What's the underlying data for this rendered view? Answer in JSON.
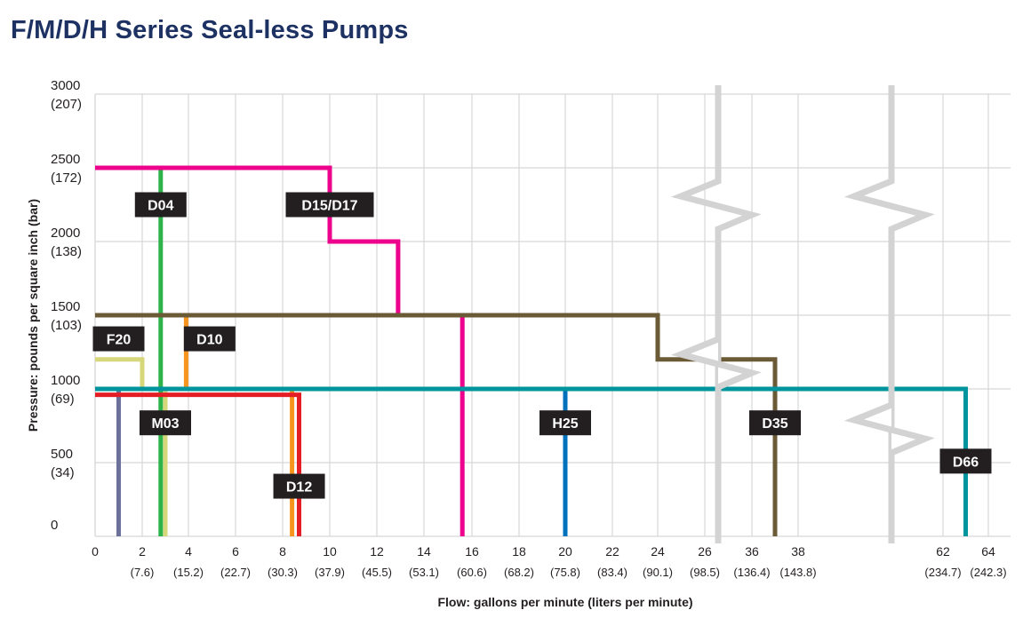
{
  "page_title": "F/M/D/H Series Seal-less Pumps",
  "chart_data": {
    "type": "line",
    "title": "F/M/D/H Series Seal-less Pumps",
    "xlabel": "Flow: gallons per minute (liters per minute)",
    "ylabel": "Pressure: pounds per square inch (bar)",
    "ylim": [
      0,
      3000
    ],
    "grid": true,
    "x_axis_break": "broken axis between 28 and 36 gpm and between 38 and 62 gpm",
    "y_ticks": [
      {
        "value": 0,
        "label": "0",
        "sub": ""
      },
      {
        "value": 500,
        "label": "500",
        "sub": "(34)"
      },
      {
        "value": 1000,
        "label": "1000",
        "sub": "(69)"
      },
      {
        "value": 1500,
        "label": "1500",
        "sub": "(103)"
      },
      {
        "value": 2000,
        "label": "2000",
        "sub": "(138)"
      },
      {
        "value": 2500,
        "label": "2500",
        "sub": "(172)"
      },
      {
        "value": 3000,
        "label": "3000",
        "sub": "(207)"
      }
    ],
    "x_ticks": [
      {
        "value": 0,
        "label": "0",
        "sub": ""
      },
      {
        "value": 2,
        "label": "2",
        "sub": "(7.6)"
      },
      {
        "value": 4,
        "label": "4",
        "sub": "(15.2)"
      },
      {
        "value": 6,
        "label": "6",
        "sub": "(22.7)"
      },
      {
        "value": 8,
        "label": "8",
        "sub": "(30.3)"
      },
      {
        "value": 10,
        "label": "10",
        "sub": "(37.9)"
      },
      {
        "value": 12,
        "label": "12",
        "sub": "(45.5)"
      },
      {
        "value": 14,
        "label": "14",
        "sub": "(53.1)"
      },
      {
        "value": 16,
        "label": "16",
        "sub": "(60.6)"
      },
      {
        "value": 18,
        "label": "18",
        "sub": "(68.2)"
      },
      {
        "value": 20,
        "label": "20",
        "sub": "(75.8)"
      },
      {
        "value": 22,
        "label": "22",
        "sub": "(83.4)"
      },
      {
        "value": 24,
        "label": "24",
        "sub": "(90.1)"
      },
      {
        "value": 26,
        "label": "26",
        "sub": "(98.5)"
      },
      {
        "value": 36,
        "label": "36",
        "sub": "(136.4)"
      },
      {
        "value": 38,
        "label": "38",
        "sub": "(143.8)"
      },
      {
        "value": 62,
        "label": "62",
        "sub": "(234.7)"
      },
      {
        "value": 64,
        "label": "64",
        "sub": "(242.3)"
      }
    ],
    "series": [
      {
        "name": "F20",
        "color": "#6c7199",
        "points": [
          [
            0,
            1000
          ],
          [
            1,
            1000
          ],
          [
            1,
            0
          ]
        ]
      },
      {
        "name": "M03",
        "color": "#d6d67a",
        "points": [
          [
            0,
            1200
          ],
          [
            2,
            1200
          ],
          [
            2,
            1000
          ],
          [
            3,
            1000
          ],
          [
            3,
            0
          ]
        ]
      },
      {
        "name": "D04",
        "color": "#2db34a",
        "points": [
          [
            2.8,
            2500
          ],
          [
            2.8,
            0
          ]
        ]
      },
      {
        "name": "D10",
        "color": "#f7941d",
        "points": [
          [
            0,
            1500
          ],
          [
            3.9,
            1500
          ],
          [
            3.9,
            1000
          ],
          [
            8.4,
            1000
          ],
          [
            8.4,
            0
          ]
        ]
      },
      {
        "name": "D12",
        "color": "#e31e24",
        "points": [
          [
            0,
            960
          ],
          [
            8.7,
            960
          ],
          [
            8.7,
            0
          ]
        ]
      },
      {
        "name": "D15/D17",
        "color": "#ec008c",
        "points": [
          [
            0,
            2500
          ],
          [
            10,
            2500
          ],
          [
            10,
            2000
          ],
          [
            12.9,
            2000
          ],
          [
            12.9,
            1500
          ],
          [
            15.6,
            1500
          ],
          [
            15.6,
            0
          ]
        ]
      },
      {
        "name": "H25",
        "color": "#0072bc",
        "points": [
          [
            20,
            1000
          ],
          [
            20,
            0
          ]
        ]
      },
      {
        "name": "D35",
        "color": "#6a5a36",
        "points": [
          [
            0,
            1500
          ],
          [
            24,
            1500
          ],
          [
            24,
            1200
          ],
          [
            37,
            1200
          ],
          [
            37,
            0
          ]
        ]
      },
      {
        "name": "D66",
        "color": "#00959e",
        "points": [
          [
            0,
            1000
          ],
          [
            63,
            1000
          ],
          [
            63,
            0
          ]
        ]
      }
    ],
    "labels": [
      {
        "text": "D04",
        "x": 2.8,
        "y": 2250
      },
      {
        "text": "D15/D17",
        "x": 10,
        "y": 2250
      },
      {
        "text": "F20",
        "x": 1,
        "y": 1340
      },
      {
        "text": "D10",
        "x": 4.9,
        "y": 1340
      },
      {
        "text": "M03",
        "x": 3,
        "y": 770
      },
      {
        "text": "H25",
        "x": 20,
        "y": 770
      },
      {
        "text": "D35",
        "x": 37,
        "y": 770
      },
      {
        "text": "D12",
        "x": 8.7,
        "y": 340
      },
      {
        "text": "D66",
        "x": 63,
        "y": 510
      }
    ]
  }
}
